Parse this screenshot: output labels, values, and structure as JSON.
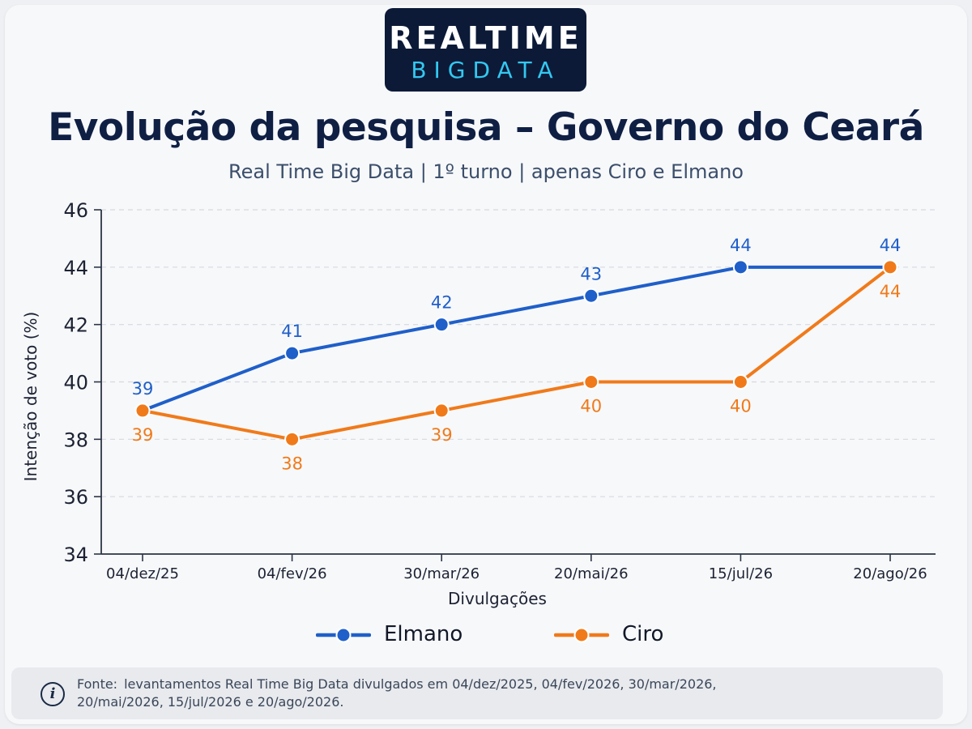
{
  "logo": {
    "top": "REALTIME",
    "bottom": "BIGDATA"
  },
  "header": {
    "title": "Evolução da pesquisa – Governo do Ceará",
    "subtitle": "Real Time Big Data | 1º turno | apenas Ciro e Elmano"
  },
  "chart_data": {
    "type": "line",
    "title": "Evolução da pesquisa – Governo do Ceará",
    "subtitle": "Real Time Big Data | 1º turno | apenas Ciro e Elmano",
    "xlabel": "Divulgações",
    "ylabel": "Intenção de voto (%)",
    "categories": [
      "04/dez/25",
      "04/fev/26",
      "30/mar/26",
      "20/mai/26",
      "15/jul/26",
      "20/ago/26"
    ],
    "ylim": [
      34,
      46
    ],
    "yticks": [
      34,
      36,
      38,
      40,
      42,
      44,
      46
    ],
    "grid": true,
    "legend_position": "bottom",
    "series": [
      {
        "name": "Elmano",
        "color": "#1f5fc9",
        "values": [
          39,
          41,
          42,
          43,
          44,
          44
        ],
        "label_side": "above"
      },
      {
        "name": "Ciro",
        "color": "#f07a1a",
        "values": [
          39,
          38,
          39,
          40,
          40,
          44
        ],
        "label_side": "below"
      }
    ]
  },
  "footer": {
    "label": "Fonte:",
    "text": "levantamentos Real Time Big Data divulgados em 04/dez/2025, 04/fev/2026, 30/mar/2026, 20/mai/2026, 15/jul/2026 e 20/ago/2026.",
    "icon": "info-icon"
  }
}
